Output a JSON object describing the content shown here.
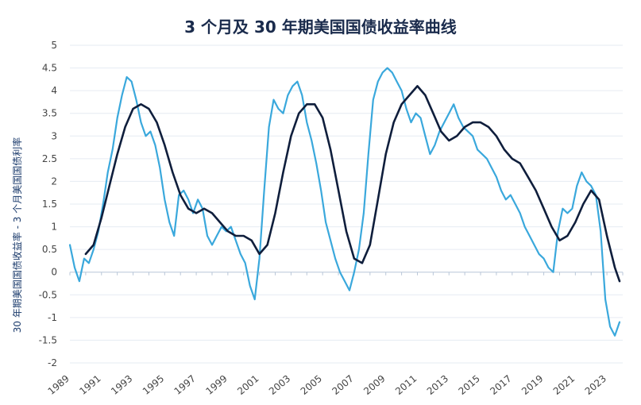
{
  "chart_data": {
    "type": "line",
    "title": "3 个月及 30 年期美国国债收益率曲线",
    "xlabel": "",
    "ylabel": "30 年期美国国债收益率 - 3 个月美国国债利率",
    "ylim": [
      -2,
      5
    ],
    "xlim": [
      1989,
      2024
    ],
    "grid": true,
    "y_ticks": [
      "5",
      "4.5",
      "4",
      "3.5",
      "3",
      "2.5",
      "2",
      "1.5",
      "1",
      "0.5",
      "0",
      "-0.5",
      "-1",
      "-1.5",
      "-2"
    ],
    "x_ticks": [
      "1989",
      "1991",
      "1993",
      "1995",
      "1997",
      "1999",
      "2001",
      "2003",
      "2005",
      "2007",
      "2009",
      "2011",
      "2013",
      "2015",
      "2017",
      "2019",
      "2021",
      "2023"
    ],
    "colors": {
      "spread": "#3aa8dc",
      "smoothed": "#0f1e3c",
      "axis": "#c9d3e0"
    },
    "series": [
      {
        "style": "light-blue-jagged",
        "x": [
          1989.0,
          1989.3,
          1989.6,
          1989.9,
          1990.2,
          1990.5,
          1990.8,
          1991.1,
          1991.4,
          1991.7,
          1992.0,
          1992.3,
          1992.6,
          1992.9,
          1993.2,
          1993.5,
          1993.8,
          1994.1,
          1994.4,
          1994.7,
          1995.0,
          1995.3,
          1995.6,
          1995.9,
          1996.2,
          1996.5,
          1996.8,
          1997.1,
          1997.4,
          1997.7,
          1998.0,
          1998.3,
          1998.6,
          1998.9,
          1999.2,
          1999.5,
          1999.8,
          2000.1,
          2000.4,
          2000.7,
          2001.0,
          2001.3,
          2001.6,
          2001.9,
          2002.2,
          2002.5,
          2002.8,
          2003.1,
          2003.4,
          2003.7,
          2004.0,
          2004.3,
          2004.6,
          2004.9,
          2005.2,
          2005.5,
          2005.8,
          2006.1,
          2006.4,
          2006.7,
          2007.0,
          2007.3,
          2007.6,
          2007.9,
          2008.2,
          2008.5,
          2008.8,
          2009.1,
          2009.4,
          2009.7,
          2010.0,
          2010.3,
          2010.6,
          2010.9,
          2011.2,
          2011.5,
          2011.8,
          2012.1,
          2012.4,
          2012.7,
          2013.0,
          2013.3,
          2013.6,
          2013.9,
          2014.2,
          2014.5,
          2014.8,
          2015.1,
          2015.4,
          2015.7,
          2016.0,
          2016.3,
          2016.6,
          2016.9,
          2017.2,
          2017.5,
          2017.8,
          2018.1,
          2018.4,
          2018.7,
          2019.0,
          2019.3,
          2019.6,
          2019.9,
          2020.2,
          2020.5,
          2020.8,
          2021.1,
          2021.4,
          2021.7,
          2022.0,
          2022.3,
          2022.6,
          2022.9,
          2023.2,
          2023.5,
          2023.8
        ],
        "values": [
          0.6,
          0.1,
          -0.2,
          0.3,
          0.2,
          0.5,
          0.9,
          1.5,
          2.2,
          2.7,
          3.4,
          3.9,
          4.3,
          4.2,
          3.8,
          3.3,
          3.0,
          3.1,
          2.8,
          2.3,
          1.6,
          1.1,
          0.8,
          1.7,
          1.8,
          1.6,
          1.3,
          1.6,
          1.4,
          0.8,
          0.6,
          0.8,
          1.0,
          0.9,
          1.0,
          0.7,
          0.4,
          0.2,
          -0.3,
          -0.6,
          0.3,
          1.8,
          3.2,
          3.8,
          3.6,
          3.5,
          3.9,
          4.1,
          4.2,
          3.9,
          3.3,
          2.9,
          2.4,
          1.8,
          1.1,
          0.7,
          0.3,
          0.0,
          -0.2,
          -0.4,
          0.0,
          0.5,
          1.3,
          2.6,
          3.8,
          4.2,
          4.4,
          4.5,
          4.4,
          4.2,
          4.0,
          3.6,
          3.3,
          3.5,
          3.4,
          3.0,
          2.6,
          2.8,
          3.1,
          3.3,
          3.5,
          3.7,
          3.4,
          3.2,
          3.1,
          3.0,
          2.7,
          2.6,
          2.5,
          2.3,
          2.1,
          1.8,
          1.6,
          1.7,
          1.5,
          1.3,
          1.0,
          0.8,
          0.6,
          0.4,
          0.3,
          0.1,
          0.0,
          0.9,
          1.4,
          1.3,
          1.4,
          1.9,
          2.2,
          2.0,
          1.9,
          1.7,
          0.9,
          -0.6,
          -1.2,
          -1.4,
          -1.1
        ]
      },
      {
        "style": "dark-navy-smooth",
        "x": [
          1990.0,
          1990.5,
          1991.0,
          1991.5,
          1992.0,
          1992.5,
          1993.0,
          1993.5,
          1994.0,
          1994.5,
          1995.0,
          1995.5,
          1996.0,
          1996.5,
          1997.0,
          1997.5,
          1998.0,
          1998.5,
          1999.0,
          1999.5,
          2000.0,
          2000.5,
          2001.0,
          2001.5,
          2002.0,
          2002.5,
          2003.0,
          2003.5,
          2004.0,
          2004.5,
          2005.0,
          2005.5,
          2006.0,
          2006.5,
          2007.0,
          2007.5,
          2008.0,
          2008.5,
          2009.0,
          2009.5,
          2010.0,
          2010.5,
          2011.0,
          2011.5,
          2012.0,
          2012.5,
          2013.0,
          2013.5,
          2014.0,
          2014.5,
          2015.0,
          2015.5,
          2016.0,
          2016.5,
          2017.0,
          2017.5,
          2018.0,
          2018.5,
          2019.0,
          2019.5,
          2020.0,
          2020.5,
          2021.0,
          2021.5,
          2022.0,
          2022.5,
          2023.0,
          2023.5,
          2023.8
        ],
        "values": [
          0.4,
          0.6,
          1.2,
          1.9,
          2.6,
          3.2,
          3.6,
          3.7,
          3.6,
          3.3,
          2.8,
          2.2,
          1.7,
          1.4,
          1.3,
          1.4,
          1.3,
          1.1,
          0.9,
          0.8,
          0.8,
          0.7,
          0.4,
          0.6,
          1.3,
          2.2,
          3.0,
          3.5,
          3.7,
          3.7,
          3.4,
          2.7,
          1.8,
          0.9,
          0.3,
          0.2,
          0.6,
          1.6,
          2.6,
          3.3,
          3.7,
          3.9,
          4.1,
          3.9,
          3.5,
          3.1,
          2.9,
          3.0,
          3.2,
          3.3,
          3.3,
          3.2,
          3.0,
          2.7,
          2.5,
          2.4,
          2.1,
          1.8,
          1.4,
          1.0,
          0.7,
          0.8,
          1.1,
          1.5,
          1.8,
          1.6,
          0.8,
          0.1,
          -0.2
        ]
      }
    ]
  }
}
